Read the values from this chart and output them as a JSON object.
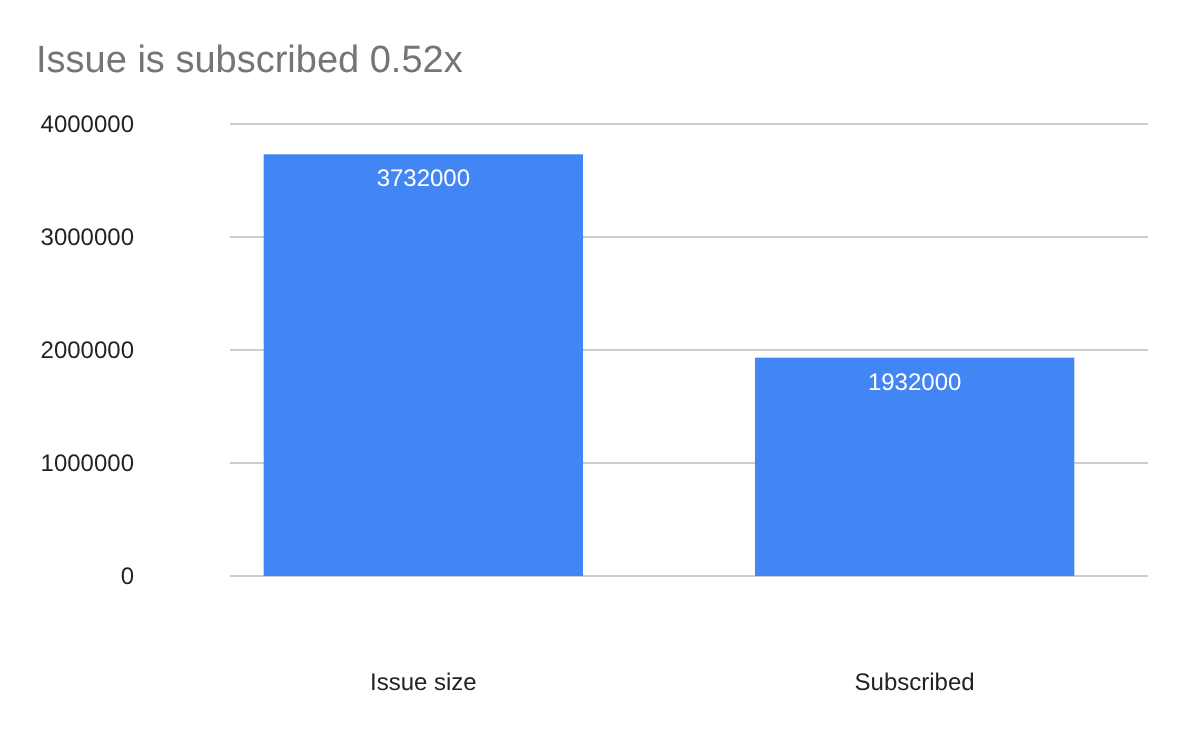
{
  "chart_data": {
    "type": "bar",
    "title": "Issue is subscribed 0.52x",
    "categories": [
      "Issue size",
      "Subscribed"
    ],
    "values": [
      3732000,
      1932000
    ],
    "color": "#4285f4",
    "ylim": [
      0,
      4000000
    ],
    "yticks": [
      0,
      1000000,
      2000000,
      3000000,
      4000000
    ],
    "grid": "y",
    "data_labels": true
  }
}
